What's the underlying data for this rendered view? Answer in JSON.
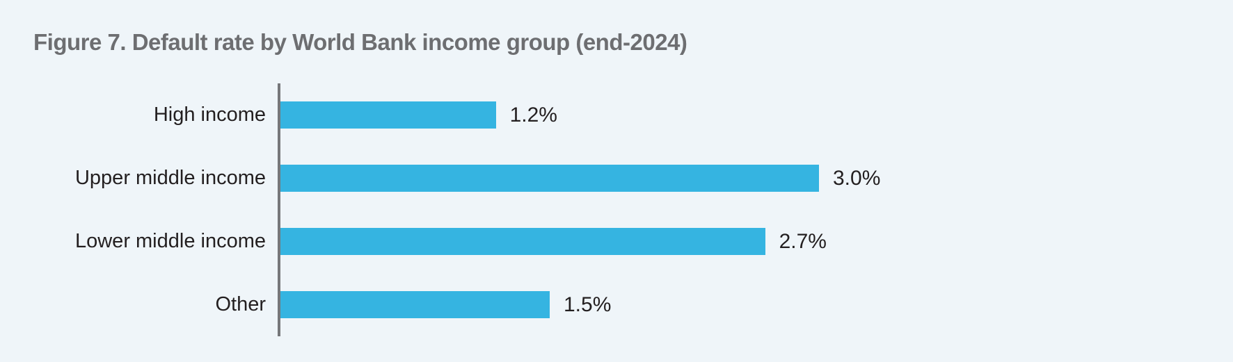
{
  "figure": {
    "title": "Figure 7. Default rate by World Bank income group (end-2024)"
  },
  "chart_data": {
    "type": "bar",
    "orientation": "horizontal",
    "title": "Figure 7. Default rate by World Bank income group (end-2024)",
    "categories": [
      "High income",
      "Upper middle income",
      "Lower middle income",
      "Other"
    ],
    "values": [
      1.2,
      3.0,
      2.7,
      1.5
    ],
    "value_labels": [
      "1.2%",
      "3.0%",
      "2.7%",
      "1.5%"
    ],
    "unit": "%",
    "xlabel": "",
    "ylabel": "",
    "xlim": [
      0,
      3.5
    ],
    "grid": false,
    "legend": false,
    "data_labels": "outside-end",
    "colors": {
      "bar": "#35b4e1",
      "background": "#eff5f9",
      "axis_line": "#76777a",
      "title_text": "#6d6e71",
      "label_text": "#231f20"
    }
  }
}
